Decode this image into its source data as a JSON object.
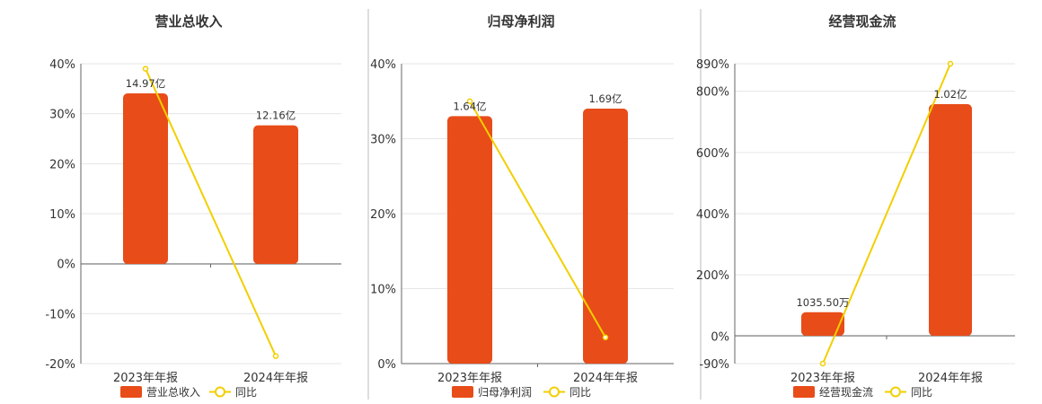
{
  "colors": {
    "bar": "#E84C19",
    "line": "#F2CF00",
    "text": "#333333"
  },
  "chart_data": [
    {
      "type": "bar",
      "title": "营业总收入",
      "categories": [
        "2023年年报",
        "2024年年报"
      ],
      "series": [
        {
          "name": "营业总收入",
          "type": "bar",
          "values": [
            14.97,
            12.16
          ],
          "labels": [
            "14.97亿",
            "12.16亿"
          ]
        },
        {
          "name": "同比",
          "type": "line",
          "values": [
            39.0,
            -18.5
          ]
        }
      ],
      "ylim": [
        -20,
        40
      ],
      "yticks": [
        "40%",
        "30%",
        "20%",
        "10%",
        "0%",
        "-10%",
        "-20%"
      ],
      "ytick_values": [
        40,
        30,
        20,
        10,
        0,
        -10,
        -20
      ],
      "grid": true,
      "legend": "bottom"
    },
    {
      "type": "bar",
      "title": "归母净利润",
      "categories": [
        "2023年年报",
        "2024年年报"
      ],
      "series": [
        {
          "name": "归母净利润",
          "type": "bar",
          "values": [
            1.64,
            1.69
          ],
          "labels": [
            "1.64亿",
            "1.69亿"
          ]
        },
        {
          "name": "同比",
          "type": "line",
          "values": [
            35.0,
            3.5
          ]
        }
      ],
      "ylim": [
        0,
        40
      ],
      "yticks": [
        "40%",
        "30%",
        "20%",
        "10%",
        "0%"
      ],
      "ytick_values": [
        40,
        30,
        20,
        10,
        0
      ],
      "grid": true,
      "legend": "bottom"
    },
    {
      "type": "bar",
      "title": "经营现金流",
      "categories": [
        "2023年年报",
        "2024年年报"
      ],
      "series": [
        {
          "name": "经营现金流",
          "type": "bar",
          "values": [
            0.10355,
            1.02
          ],
          "labels": [
            "1035.50万",
            "1.02亿"
          ]
        },
        {
          "name": "同比",
          "type": "line",
          "values": [
            -90,
            890
          ]
        }
      ],
      "ylim": [
        -90,
        890
      ],
      "yticks": [
        "890%",
        "800%",
        "600%",
        "400%",
        "200%",
        "0%",
        "-90%"
      ],
      "ytick_values": [
        890,
        800,
        600,
        400,
        200,
        0,
        -90
      ],
      "grid": true,
      "legend": "bottom"
    }
  ]
}
